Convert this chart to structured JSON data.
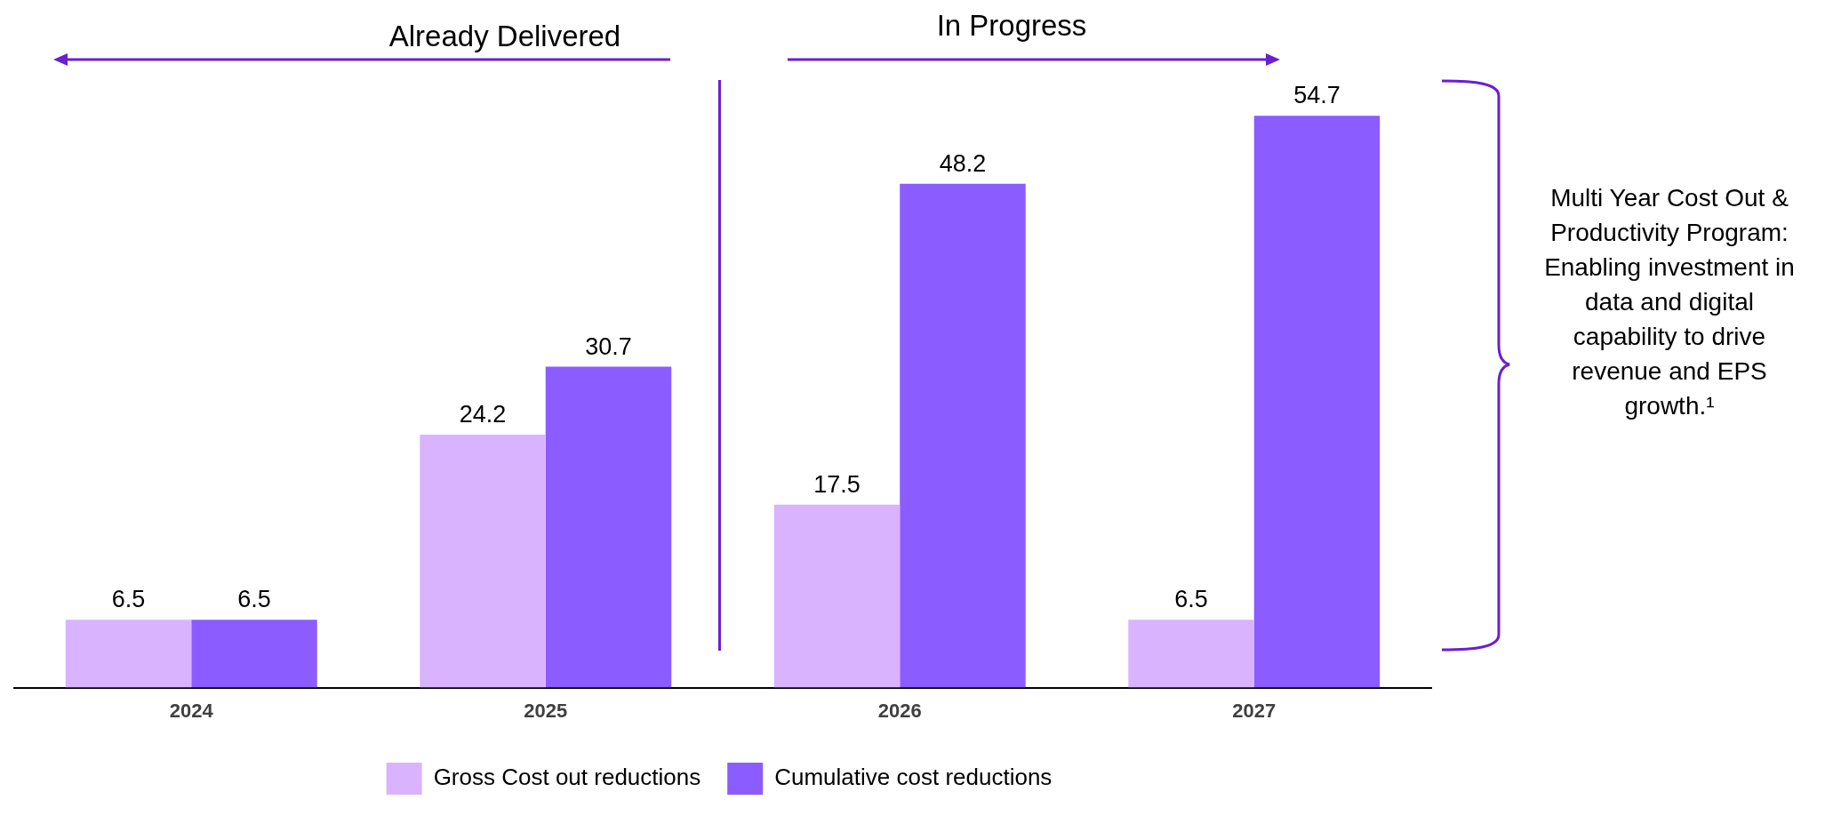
{
  "chart_data": {
    "type": "bar",
    "categories": [
      "2024",
      "2025",
      "2026",
      "2027"
    ],
    "series": [
      {
        "name": "Gross Cost out reductions",
        "color": "#dab3ff",
        "values": [
          6.5,
          24.2,
          17.5,
          6.5
        ]
      },
      {
        "name": "Cumulative cost reductions",
        "color": "#8b5cff",
        "values": [
          6.5,
          30.7,
          48.2,
          54.7
        ]
      }
    ],
    "tick_labels": "x",
    "data_labels": true,
    "grid": false,
    "legend": "bottom",
    "annotations": [
      "Already Delivered",
      "In Progress",
      "Multi Year Cost Out & Productivity Program: Enabling investment in data and digital capability to drive revenue and EPS growth.¹"
    ]
  }
}
